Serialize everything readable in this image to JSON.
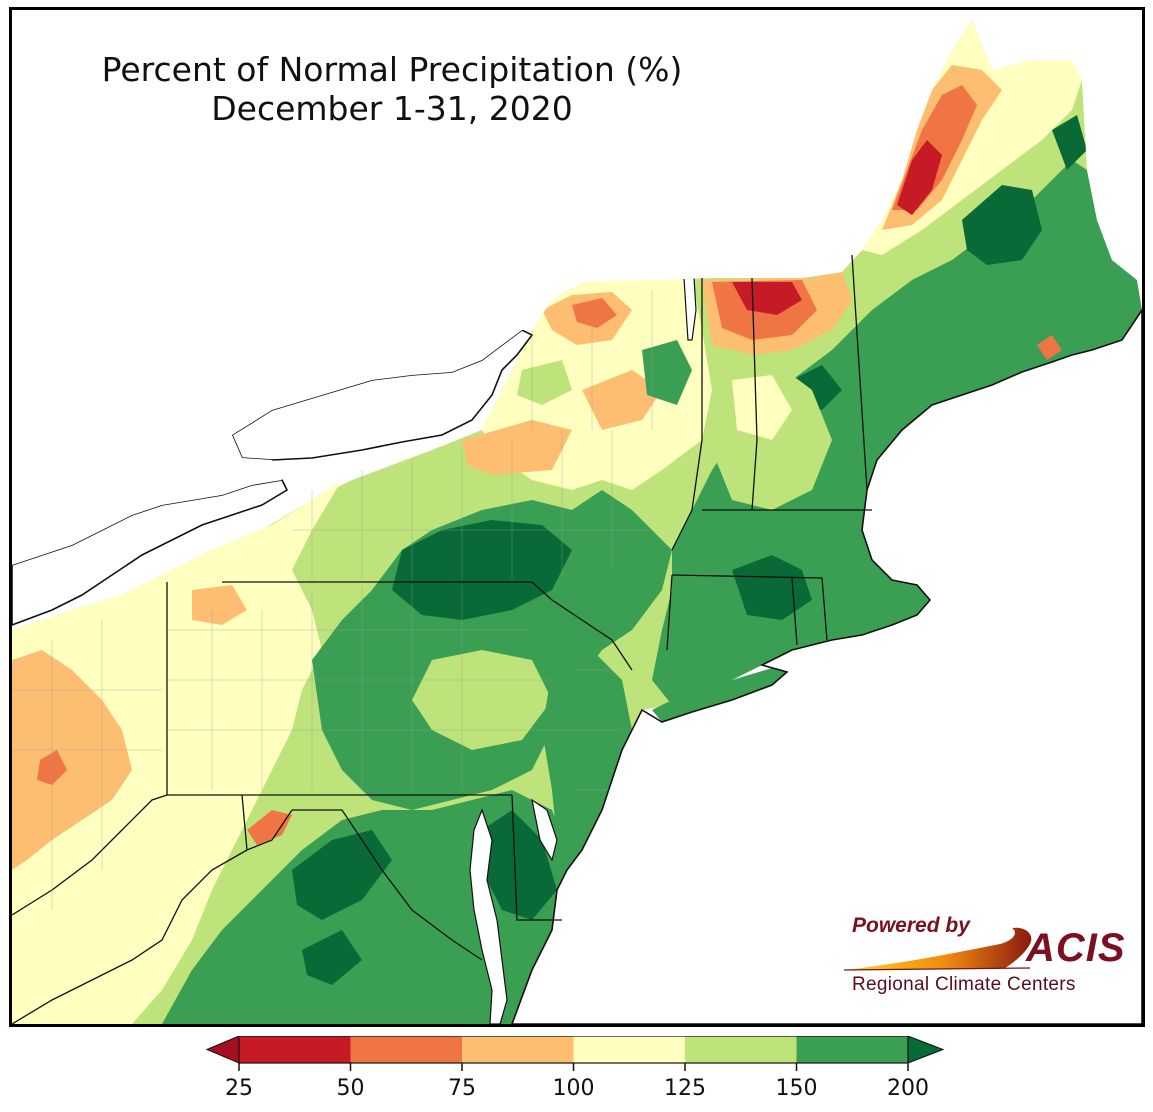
{
  "title": {
    "line1": "Percent of Normal Precipitation (%)",
    "line2": "December 1-31, 2020"
  },
  "logo": {
    "powered_by": "Powered by",
    "brand": "ACIS",
    "subtitle": "Regional Climate Centers"
  },
  "legend": {
    "ticks": [
      "25",
      "50",
      "75",
      "100",
      "125",
      "150",
      "200"
    ],
    "colors": [
      "#c61a27",
      "#f07545",
      "#fdbe72",
      "#ffffbf",
      "#bde37a",
      "#3a9f52"
    ],
    "under_color": "#a50f1f",
    "over_color": "#066b36"
  },
  "colors": {
    "very_wet": "#0a6a37",
    "wet": "#3a9f52",
    "moist": "#bde37a",
    "near_normal": "#ffffbf",
    "dry": "#fdbe72",
    "drier": "#f07545",
    "driest": "#c61a27",
    "water": "#ffffff",
    "border": "#111111"
  }
}
